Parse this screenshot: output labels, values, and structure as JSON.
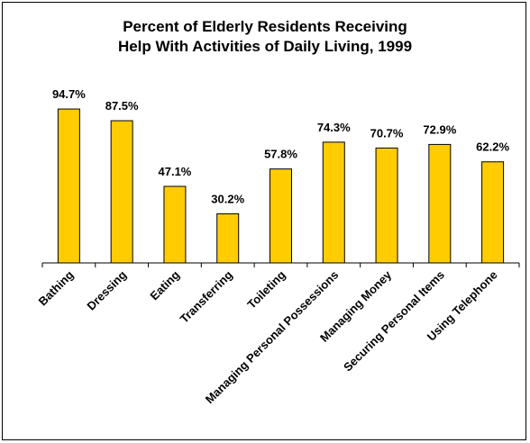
{
  "chart_data": {
    "type": "bar",
    "title": [
      "Percent of Elderly Residents Receiving",
      "Help With Activities of Daily Living, 1999"
    ],
    "categories": [
      "Bathing",
      "Dressing",
      "Eating",
      "Transferring",
      "Toileting",
      "Managing Personal Possessions",
      "Managing Money",
      "Securing Personal Items",
      "Using Telephone"
    ],
    "values": [
      94.7,
      87.5,
      47.1,
      30.2,
      57.8,
      74.3,
      70.7,
      72.9,
      62.2
    ],
    "value_labels": [
      "94.7%",
      "87.5%",
      "47.1%",
      "30.2%",
      "57.8%",
      "74.3%",
      "70.7%",
      "72.9%",
      "62.2%"
    ],
    "ylim": [
      0,
      100
    ],
    "xlabel": "",
    "ylabel": "",
    "grid": false,
    "bar_color": "#FFCC00",
    "bar_edge_color": "#000000"
  }
}
